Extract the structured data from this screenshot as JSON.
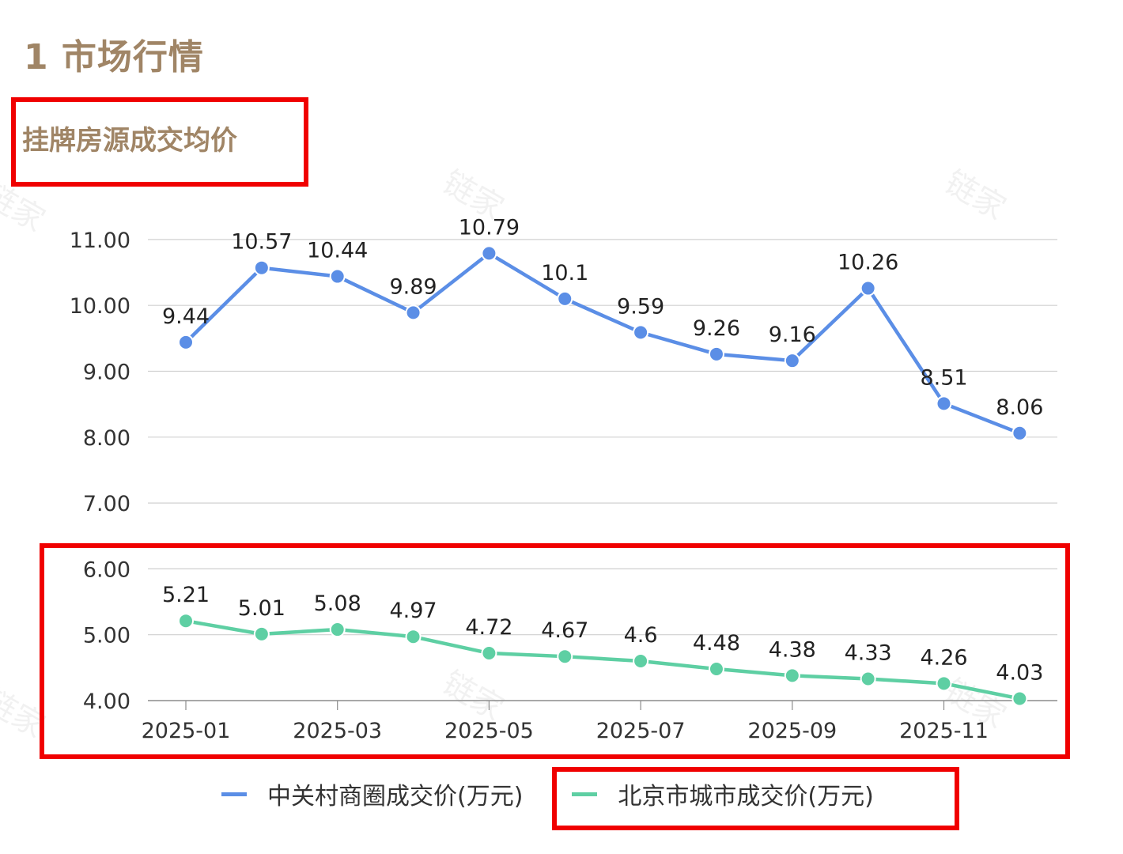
{
  "header": {
    "section_title": "1 市场行情",
    "subtitle": "挂牌房源成交均价"
  },
  "watermark": {
    "text": "链家"
  },
  "colors": {
    "title": "#a08566",
    "series_zgc": "#5b8ee6",
    "series_bj": "#5ecfa3",
    "highlight_box": "#f00000",
    "grid": "#d0d0d0"
  },
  "legend": {
    "items": [
      {
        "label": "中关村商圈成交价(万元)",
        "color": "#5b8ee6"
      },
      {
        "label": "北京市城市成交价(万元)",
        "color": "#5ecfa3"
      }
    ]
  },
  "chart_data": {
    "type": "line",
    "title": "挂牌房源成交均价",
    "xlabel": "",
    "ylabel": "",
    "x": [
      "2025-01",
      "2025-02",
      "2025-03",
      "2025-04",
      "2025-05",
      "2025-06",
      "2025-07",
      "2025-08",
      "2025-09",
      "2025-10",
      "2025-11",
      "2025-12"
    ],
    "x_tick_labels": [
      "2025-01",
      "2025-03",
      "2025-05",
      "2025-07",
      "2025-09",
      "2025-11"
    ],
    "y_tick_labels": [
      "4.00",
      "5.00",
      "6.00",
      "7.00",
      "8.00",
      "9.00",
      "10.00",
      "11.00"
    ],
    "ylim": [
      4,
      11
    ],
    "grid": true,
    "legend_position": "bottom",
    "series": [
      {
        "name": "中关村商圈成交价(万元)",
        "color": "#5b8ee6",
        "values": [
          9.44,
          10.57,
          10.44,
          9.89,
          10.79,
          10.1,
          9.59,
          9.26,
          9.16,
          10.26,
          8.51,
          8.06
        ],
        "labels": [
          "9.44",
          "10.57",
          "10.44",
          "9.89",
          "10.79",
          "10.1",
          "9.59",
          "9.26",
          "9.16",
          "10.26",
          "8.51",
          "8.06"
        ]
      },
      {
        "name": "北京市城市成交价(万元)",
        "color": "#5ecfa3",
        "values": [
          5.21,
          5.01,
          5.08,
          4.97,
          4.72,
          4.67,
          4.6,
          4.48,
          4.38,
          4.33,
          4.26,
          4.03
        ],
        "labels": [
          "5.21",
          "5.01",
          "5.08",
          "4.97",
          "4.72",
          "4.67",
          "4.6",
          "4.48",
          "4.38",
          "4.33",
          "4.26",
          "4.03"
        ]
      }
    ]
  }
}
